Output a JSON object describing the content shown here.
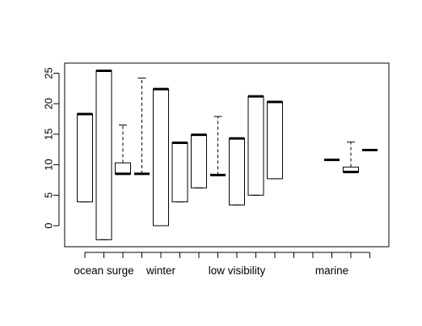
{
  "chart_data": {
    "type": "boxplot",
    "title": "",
    "xlabel": "",
    "ylabel": "",
    "ylim": [
      -3.5,
      27
    ],
    "yticks": [
      0,
      5,
      10,
      15,
      20,
      25
    ],
    "x_group_labels": [
      {
        "label": "ocean surge",
        "position": 2
      },
      {
        "label": "winter",
        "position": 5
      },
      {
        "label": "low visibility",
        "position": 9
      },
      {
        "label": "marine",
        "position": 14
      }
    ],
    "boxes": [
      {
        "position": 1,
        "stats": [
          3.9,
          3.9,
          18.3,
          18.3,
          18.3
        ]
      },
      {
        "position": 2,
        "stats": [
          -2.3,
          -2.3,
          25.4,
          25.4,
          25.4
        ]
      },
      {
        "position": 3,
        "stats": [
          8.5,
          8.5,
          8.5,
          10.3,
          16.5
        ]
      },
      {
        "position": 4,
        "stats": [
          8.5,
          8.5,
          8.5,
          8.5,
          24.2
        ]
      },
      {
        "position": 5,
        "stats": [
          0.0,
          0.0,
          22.4,
          22.4,
          22.4
        ]
      },
      {
        "position": 6,
        "stats": [
          3.9,
          3.9,
          13.6,
          13.6,
          13.6
        ]
      },
      {
        "position": 7,
        "stats": [
          6.2,
          6.2,
          14.9,
          14.9,
          14.9
        ]
      },
      {
        "position": 8,
        "stats": [
          8.3,
          8.3,
          8.3,
          8.3,
          17.9
        ]
      },
      {
        "position": 9,
        "stats": [
          3.4,
          3.4,
          14.3,
          14.3,
          14.3
        ]
      },
      {
        "position": 10,
        "stats": [
          5.0,
          5.0,
          21.2,
          21.2,
          21.2
        ]
      },
      {
        "position": 11,
        "stats": [
          7.7,
          7.7,
          20.3,
          20.3,
          20.3
        ]
      },
      {
        "position": 12,
        "stats": null
      },
      {
        "position": 13,
        "stats": null
      },
      {
        "position": 14,
        "stats": [
          10.8,
          10.8,
          10.8,
          10.8,
          10.8
        ]
      },
      {
        "position": 15,
        "stats": [
          8.8,
          8.8,
          8.8,
          9.6,
          13.7
        ]
      },
      {
        "position": 16,
        "stats": [
          12.4,
          12.4,
          12.4,
          12.4,
          12.4
        ]
      }
    ],
    "grid": false,
    "legend": "none"
  }
}
